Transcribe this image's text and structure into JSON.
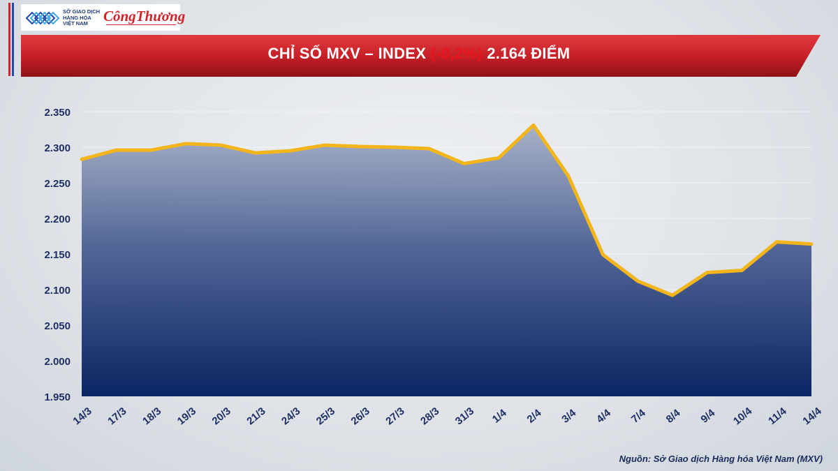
{
  "colors": {
    "banner_red": "#c82028",
    "line_gold": "#f2b51c",
    "area_top": "#8e9bb8",
    "area_bottom": "#0f2a66",
    "tick_text": "#1f2f63",
    "highlight_red": "#e8141c"
  },
  "header": {
    "logo_lines": [
      "SỞ GIAO DỊCH",
      "HÀNG HÓA",
      "VIỆT NAM"
    ],
    "logo_brand": "CôngThương"
  },
  "title": {
    "prefix": "CHỈ SỐ MXV – INDEX ",
    "change": "(-0,2%)",
    "suffix": " 2.164 ĐIỂM"
  },
  "source": "Nguồn: Sở Giao dịch Hàng hóa Việt Nam (MXV)",
  "chart_data": {
    "type": "area",
    "title": "CHỈ SỐ MXV – INDEX (-0,2%) 2.164 ĐIỂM",
    "categories": [
      "14/3",
      "17/3",
      "18/3",
      "19/3",
      "20/3",
      "21/3",
      "24/3",
      "25/3",
      "26/3",
      "27/3",
      "28/3",
      "31/3",
      "1/4",
      "2/4",
      "3/4",
      "4/4",
      "7/4",
      "8/4",
      "9/4",
      "10/4",
      "11/4",
      "14/4"
    ],
    "values": [
      2283,
      2296,
      2296,
      2305,
      2303,
      2292,
      2295,
      2303,
      2301,
      2300,
      2298,
      2277,
      2285,
      2331,
      2260,
      2149,
      2112,
      2092,
      2124,
      2127,
      2167,
      2164
    ],
    "ylim": [
      1950,
      2350
    ],
    "yticks": [
      1950,
      2000,
      2050,
      2100,
      2150,
      2200,
      2250,
      2300,
      2350
    ],
    "ytick_labels": [
      "1.950",
      "2.000",
      "2.050",
      "2.100",
      "2.150",
      "2.200",
      "2.250",
      "2.300",
      "2.350"
    ],
    "xlabel": "",
    "ylabel": "",
    "grid": true,
    "legend": "none"
  }
}
